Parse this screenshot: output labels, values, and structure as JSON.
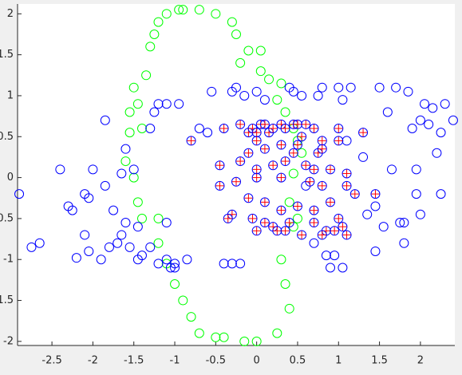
{
  "chart_data": {
    "type": "scatter",
    "xlim": [
      -2.92,
      2.42
    ],
    "ylim": [
      -2.05,
      2.12
    ],
    "xticks": [
      -2.5,
      -2,
      -1.5,
      -1,
      -0.5,
      0,
      0.5,
      1,
      1.5,
      2
    ],
    "yticks": [
      -2,
      -1.5,
      -1,
      -0.5,
      0,
      0.5,
      1,
      1.5,
      2
    ],
    "series": [
      {
        "color": "#00ff00",
        "marker": "o",
        "x": [
          -1.5,
          -1.45,
          -1.4,
          -1.55,
          -1.6,
          -1.5,
          -1.45,
          -1.4,
          -1.2,
          -1.2,
          -1.1,
          -1.0,
          -0.9,
          -0.8,
          -0.7,
          -0.5,
          -0.4,
          -0.15,
          0.0,
          -1.3,
          -1.25,
          -1.2,
          -1.1,
          -0.95,
          -0.9,
          -0.7,
          -0.5,
          -0.3,
          -0.25,
          -0.1,
          0.05,
          -0.2,
          0.05,
          0.15,
          0.3,
          0.25,
          0.35,
          0.45,
          0.5,
          0.55,
          0.45,
          0.4,
          0.5,
          0.45,
          0.3,
          0.35,
          0.4,
          0.25,
          -1.35,
          -1.55
        ],
        "y": [
          1.1,
          0.9,
          0.6,
          0.55,
          0.2,
          0.0,
          -0.3,
          -0.5,
          -0.5,
          -0.8,
          -1.05,
          -1.3,
          -1.5,
          -1.7,
          -1.9,
          -1.95,
          -1.95,
          -2.0,
          -2.0,
          1.6,
          1.75,
          1.9,
          2.0,
          2.05,
          2.05,
          2.05,
          2.0,
          1.9,
          1.75,
          1.55,
          1.55,
          1.4,
          1.3,
          1.2,
          1.15,
          0.95,
          0.8,
          0.6,
          0.45,
          0.3,
          0.05,
          -0.3,
          -0.5,
          -0.6,
          -1.0,
          -1.3,
          -1.6,
          -1.9,
          1.25,
          0.8
        ]
      },
      {
        "color": "#0000ff",
        "marker": "o",
        "x": [
          -2.9,
          -2.75,
          -2.65,
          -2.4,
          -2.3,
          -2.25,
          -2.2,
          -2.05,
          -2.1,
          -2.05,
          -2.0,
          -2.1,
          -1.85,
          -1.85,
          -1.8,
          -1.9,
          -1.7,
          -1.65,
          -1.6,
          -1.75,
          -1.6,
          -1.65,
          -1.55,
          -1.45,
          -1.5,
          -1.45,
          -1.4,
          -1.3,
          -1.3,
          -1.2,
          -1.1,
          -1.05,
          -1.0,
          -1.0,
          -1.1,
          -1.25,
          -1.2,
          -1.1,
          -0.95,
          -0.7,
          -0.6,
          -0.55,
          -0.4,
          -0.3,
          -0.2,
          -0.25,
          -0.3,
          -0.15,
          0.0,
          0.1,
          0.4,
          0.45,
          0.6,
          0.7,
          0.75,
          0.8,
          0.85,
          0.9,
          1.0,
          1.05,
          1.1,
          1.15,
          1.3,
          1.35,
          1.45,
          1.45,
          1.5,
          1.55,
          1.6,
          1.65,
          1.7,
          1.75,
          1.8,
          1.8,
          1.85,
          1.9,
          1.95,
          1.95,
          2.0,
          2.0,
          2.05,
          2.1,
          2.15,
          2.2,
          2.25,
          2.25,
          2.3,
          2.4,
          1.05,
          0.95,
          0.55,
          -0.85
        ],
        "y": [
          -0.2,
          -0.85,
          -0.8,
          0.1,
          -0.35,
          -0.4,
          -0.98,
          -0.9,
          -0.2,
          -0.25,
          0.1,
          -0.7,
          -0.1,
          0.7,
          -0.85,
          -1.0,
          -0.8,
          -0.7,
          -0.55,
          -0.4,
          0.35,
          0.05,
          -0.85,
          -0.6,
          0.1,
          -1.0,
          -0.95,
          -0.85,
          0.6,
          -1.05,
          -1.0,
          -1.1,
          -1.1,
          -1.05,
          -0.55,
          0.8,
          0.9,
          0.9,
          0.9,
          0.6,
          0.55,
          1.05,
          -1.05,
          -1.05,
          -1.05,
          1.1,
          1.05,
          1.0,
          1.05,
          0.95,
          1.1,
          1.05,
          -0.1,
          -0.8,
          1.0,
          1.1,
          -0.95,
          -1.1,
          1.1,
          0.95,
          0.45,
          1.1,
          0.25,
          -0.45,
          -0.35,
          -0.9,
          1.1,
          -0.6,
          0.8,
          0.1,
          1.1,
          -0.55,
          -0.55,
          -0.8,
          1.05,
          0.6,
          0.1,
          -0.2,
          -0.45,
          0.7,
          0.9,
          0.65,
          0.85,
          0.3,
          0.55,
          -0.2,
          0.9,
          0.7,
          -1.1,
          -0.95,
          1.0,
          -1.0
        ]
      },
      {
        "color": "#ff0000",
        "edge_color": "#0000ff",
        "marker": "o+",
        "x": [
          -0.8,
          -0.4,
          -0.2,
          -0.1,
          -0.05,
          0.0,
          0.05,
          0.1,
          0.15,
          0.2,
          0.3,
          0.35,
          0.45,
          0.5,
          0.6,
          0.7,
          0.8,
          1.0,
          1.3,
          -0.1,
          0.0,
          0.1,
          0.3,
          0.5,
          0.55,
          0.75,
          0.8,
          1.0,
          -0.45,
          -0.2,
          0.0,
          0.2,
          0.35,
          0.45,
          0.6,
          0.7,
          0.9,
          1.1,
          -0.45,
          -0.25,
          0.0,
          0.3,
          0.65,
          0.8,
          1.1,
          1.2,
          1.45,
          -0.3,
          -0.1,
          0.1,
          0.3,
          0.5,
          0.7,
          0.9,
          1.0,
          -0.05,
          0.1,
          0.2,
          0.4,
          0.55,
          0.7,
          0.85,
          1.05,
          1.1,
          0.0,
          0.25,
          0.35,
          0.8,
          0.95,
          -0.35
        ],
        "y": [
          0.45,
          0.6,
          0.65,
          0.55,
          0.6,
          0.55,
          0.65,
          0.65,
          0.55,
          0.6,
          0.65,
          0.6,
          0.65,
          0.65,
          0.65,
          0.6,
          0.45,
          0.6,
          0.55,
          0.3,
          0.45,
          0.35,
          0.4,
          0.4,
          0.5,
          0.3,
          0.35,
          0.45,
          0.15,
          0.2,
          0.1,
          0.15,
          0.2,
          0.3,
          0.15,
          0.1,
          0.1,
          0.05,
          -0.1,
          -0.05,
          0.0,
          0.0,
          -0.05,
          -0.1,
          -0.1,
          -0.2,
          -0.2,
          -0.45,
          -0.25,
          -0.3,
          -0.4,
          -0.35,
          -0.4,
          -0.3,
          -0.5,
          -0.5,
          -0.55,
          -0.6,
          -0.55,
          -0.7,
          -0.55,
          -0.65,
          -0.6,
          -0.7,
          -0.65,
          -0.65,
          -0.65,
          -0.7,
          -0.65,
          -0.5
        ]
      }
    ]
  }
}
